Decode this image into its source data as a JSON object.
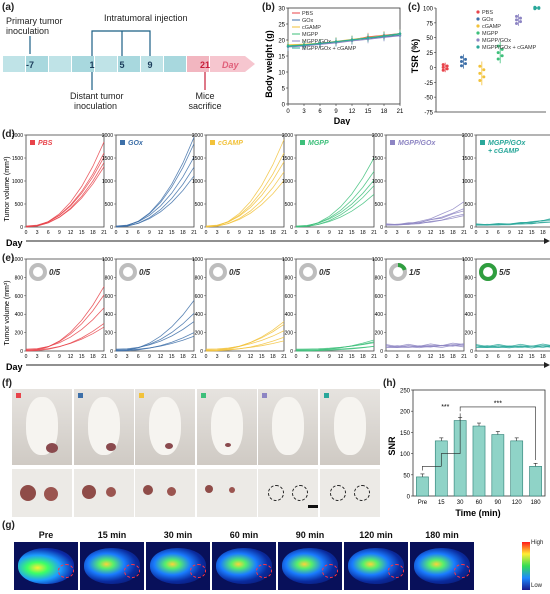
{
  "panels": {
    "a": "(a)",
    "b": "(b)",
    "c": "(c)",
    "d": "(d)",
    "e": "(e)",
    "f": "(f)",
    "g": "(g)",
    "h": "(h)"
  },
  "timeline": {
    "primary": "Primary tumor inoculation",
    "primary_l1": "Primary tumor",
    "primary_l2": "inoculation",
    "injection": "Intratumoral injection",
    "distant_l1": "Distant tumor",
    "distant_l2": "inoculation",
    "mice_l1": "Mice",
    "mice_l2": "sacrifice",
    "days": [
      "-7",
      "1",
      "5",
      "9",
      "21"
    ],
    "day_label": "Day"
  },
  "colors": {
    "PBS": "#e8434a",
    "GOx": "#3d6fa8",
    "cGAMP": "#f2c23a",
    "MGPP": "#3dbf7a",
    "MGPP/GOx": "#8d85c3",
    "MGPP/GOx + cGAMP": "#29a79a"
  },
  "groups": [
    "PBS",
    "GOx",
    "cGAMP",
    "MGPP",
    "MGPP/GOx",
    "MGPP/GOx + cGAMP"
  ],
  "body_weight": {
    "ylabel": "Body weight (g)",
    "xlabel": "Day",
    "xticks": [
      "0",
      "3",
      "6",
      "9",
      "12",
      "15",
      "18",
      "21"
    ],
    "yticks": [
      "0",
      "5",
      "10",
      "15",
      "20",
      "25",
      "30"
    ]
  },
  "tsr": {
    "ylabel": "TSR (%)",
    "yticks": [
      "-75",
      "-50",
      "-25",
      "0",
      "25",
      "50",
      "75",
      "100"
    ]
  },
  "tumor_volume": {
    "ylabel": "Tumor volume (mm³)",
    "yticks": [
      "0",
      "500",
      "1000",
      "1500",
      "2000"
    ],
    "yticks_e": [
      "0",
      "200",
      "400",
      "600",
      "800",
      "1000"
    ],
    "xticks": [
      "0",
      "3",
      "6",
      "9",
      "12",
      "15",
      "18",
      "21"
    ],
    "day": "Day",
    "titles": [
      "PBS",
      "GOx",
      "cGAMP",
      "MGPP",
      "MGPP/GOx",
      "MGPP/GOx + cGAMP"
    ],
    "title_last_l1": "MGPP/GOx",
    "title_last_l2": "+ cGAMP",
    "cure_ratios": [
      "0/5",
      "0/5",
      "0/5",
      "0/5",
      "1/5",
      "5/5"
    ]
  },
  "snr": {
    "ylabel": "SNR",
    "xlabel": "Time (min)",
    "categories": [
      "Pre",
      "15",
      "30",
      "60",
      "90",
      "120",
      "180"
    ],
    "yticks": [
      "0",
      "50",
      "100",
      "150",
      "200",
      "250"
    ],
    "sig": "***"
  },
  "fluor": {
    "times": [
      "Pre",
      "15 min",
      "30 min",
      "60 min",
      "90 min",
      "120 min",
      "180 min"
    ],
    "high": "High",
    "low": "Low"
  },
  "chart_data": [
    {
      "type": "line",
      "title": "",
      "xlabel": "Day",
      "ylabel": "Body weight (g)",
      "x": [
        0,
        3,
        6,
        9,
        12,
        15,
        18,
        21
      ],
      "ylim": [
        0,
        30
      ],
      "series": [
        {
          "name": "PBS",
          "values": [
            18,
            18.5,
            19,
            19.5,
            20,
            21,
            21.5,
            22
          ]
        },
        {
          "name": "GOx",
          "values": [
            18,
            18.3,
            18.8,
            19.3,
            20,
            20.5,
            21,
            21.5
          ]
        },
        {
          "name": "cGAMP",
          "values": [
            18.5,
            18.7,
            19,
            19.6,
            20.2,
            20.8,
            21.4,
            22
          ]
        },
        {
          "name": "MGPP",
          "values": [
            18.2,
            18.5,
            19,
            19.4,
            19.9,
            20.6,
            21.2,
            21.8
          ]
        },
        {
          "name": "MGPP/GOx",
          "values": [
            17.8,
            18.1,
            18.6,
            19.1,
            19.7,
            20.2,
            20.8,
            21.3
          ]
        },
        {
          "name": "MGPP/GOx + cGAMP",
          "values": [
            18,
            18.4,
            18.9,
            19.5,
            20.1,
            20.7,
            21.3,
            22
          ]
        }
      ]
    },
    {
      "type": "scatter",
      "title": "",
      "ylabel": "TSR (%)",
      "ylim": [
        -75,
        100
      ],
      "categories": [
        "PBS",
        "GOx",
        "cGAMP",
        "MGPP",
        "MGPP/GOx",
        "MGPP/GOx + cGAMP"
      ],
      "values": [
        0,
        10,
        -10,
        25,
        80,
        100
      ]
    },
    {
      "type": "bar",
      "title": "",
      "xlabel": "Time (min)",
      "ylabel": "SNR",
      "ylim": [
        0,
        250
      ],
      "categories": [
        "Pre",
        "15",
        "30",
        "60",
        "90",
        "120",
        "180"
      ],
      "values": [
        45,
        130,
        178,
        165,
        145,
        130,
        70
      ]
    }
  ]
}
